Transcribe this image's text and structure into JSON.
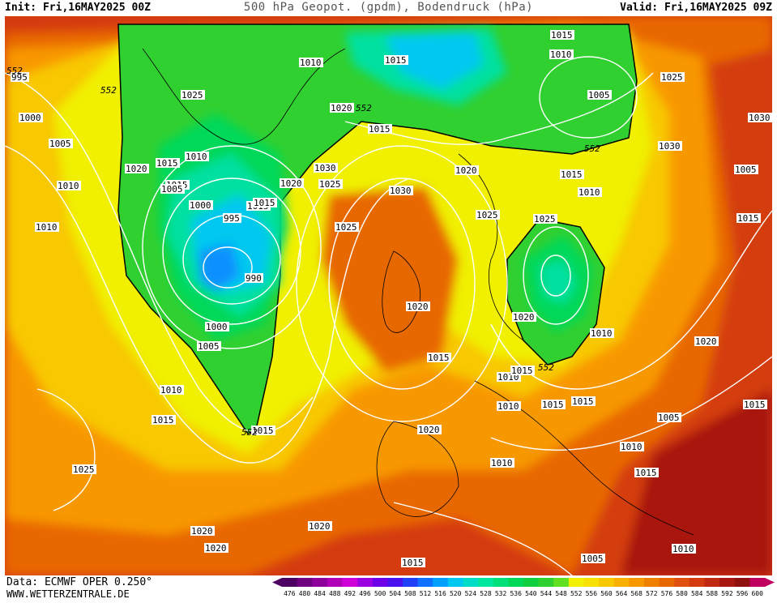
{
  "header": {
    "init": "Init: Fri,16MAY2025 00Z",
    "title": "500 hPa Geopot. (gpdm), Bodendruck (hPa)",
    "valid": "Valid: Fri,16MAY2025 09Z"
  },
  "footer": {
    "data_source": "Data: ECMWF OPER 0.250°",
    "website": "WWW.WETTERZENTRALE.DE"
  },
  "legend": {
    "values": [
      "476",
      "480",
      "484",
      "488",
      "492",
      "496",
      "500",
      "504",
      "508",
      "512",
      "516",
      "520",
      "524",
      "528",
      "532",
      "536",
      "540",
      "544",
      "548",
      "552",
      "556",
      "560",
      "564",
      "568",
      "572",
      "576",
      "580",
      "584",
      "588",
      "592",
      "596",
      "600"
    ],
    "colors": [
      "#4b0062",
      "#6e0080",
      "#8e009c",
      "#b000b8",
      "#d000d8",
      "#9b00e0",
      "#6e00e8",
      "#4a10f0",
      "#2040f8",
      "#1070ff",
      "#00a0ff",
      "#00c8f0",
      "#00dcc8",
      "#00e8a0",
      "#00e07a",
      "#00d85a",
      "#10d040",
      "#30d030",
      "#60e020",
      "#f0f000",
      "#f8e000",
      "#f8c800",
      "#f8b000",
      "#f89800",
      "#f08000",
      "#e86800",
      "#e05010",
      "#d43c10",
      "#c02810",
      "#a81810",
      "#901010",
      "#c00060"
    ]
  },
  "map": {
    "colors": {
      "c552": "#30d030",
      "c548": "#00d85a",
      "c540": "#00e0a0",
      "c532": "#00c8f0",
      "c524": "#1090ff",
      "c556": "#f0f000",
      "c560": "#f8c800",
      "c568": "#f89800",
      "c576": "#e86800",
      "c584": "#d43c10",
      "c592": "#a81810",
      "c600": "#901010"
    },
    "isobar_labels": [
      "995",
      "1000",
      "1005",
      "1010",
      "1010",
      "1015",
      "1015",
      "1020",
      "1025",
      "1015",
      "1010",
      "1005",
      "1000",
      "995",
      "990",
      "1000",
      "1005",
      "1010",
      "1015",
      "1020",
      "1025",
      "1020",
      "1015",
      "1030",
      "1025",
      "1020",
      "1015",
      "1015",
      "1010",
      "1005",
      "1025",
      "1030",
      "1030",
      "1030",
      "1025",
      "1020",
      "1015",
      "1010",
      "1010",
      "1015",
      "1020",
      "1025",
      "1020",
      "1020",
      "1015",
      "1015",
      "1010",
      "1005",
      "1015",
      "1020",
      "1015",
      "1010",
      "1015",
      "1005",
      "1010",
      "1015",
      "1010",
      "1005",
      "1010",
      "1015",
      "1015",
      "1010",
      "1025",
      "1020",
      "1015",
      "1020",
      "1015"
    ],
    "contour_labels": [
      "552",
      "552",
      "552",
      "552",
      "552",
      "552"
    ]
  }
}
